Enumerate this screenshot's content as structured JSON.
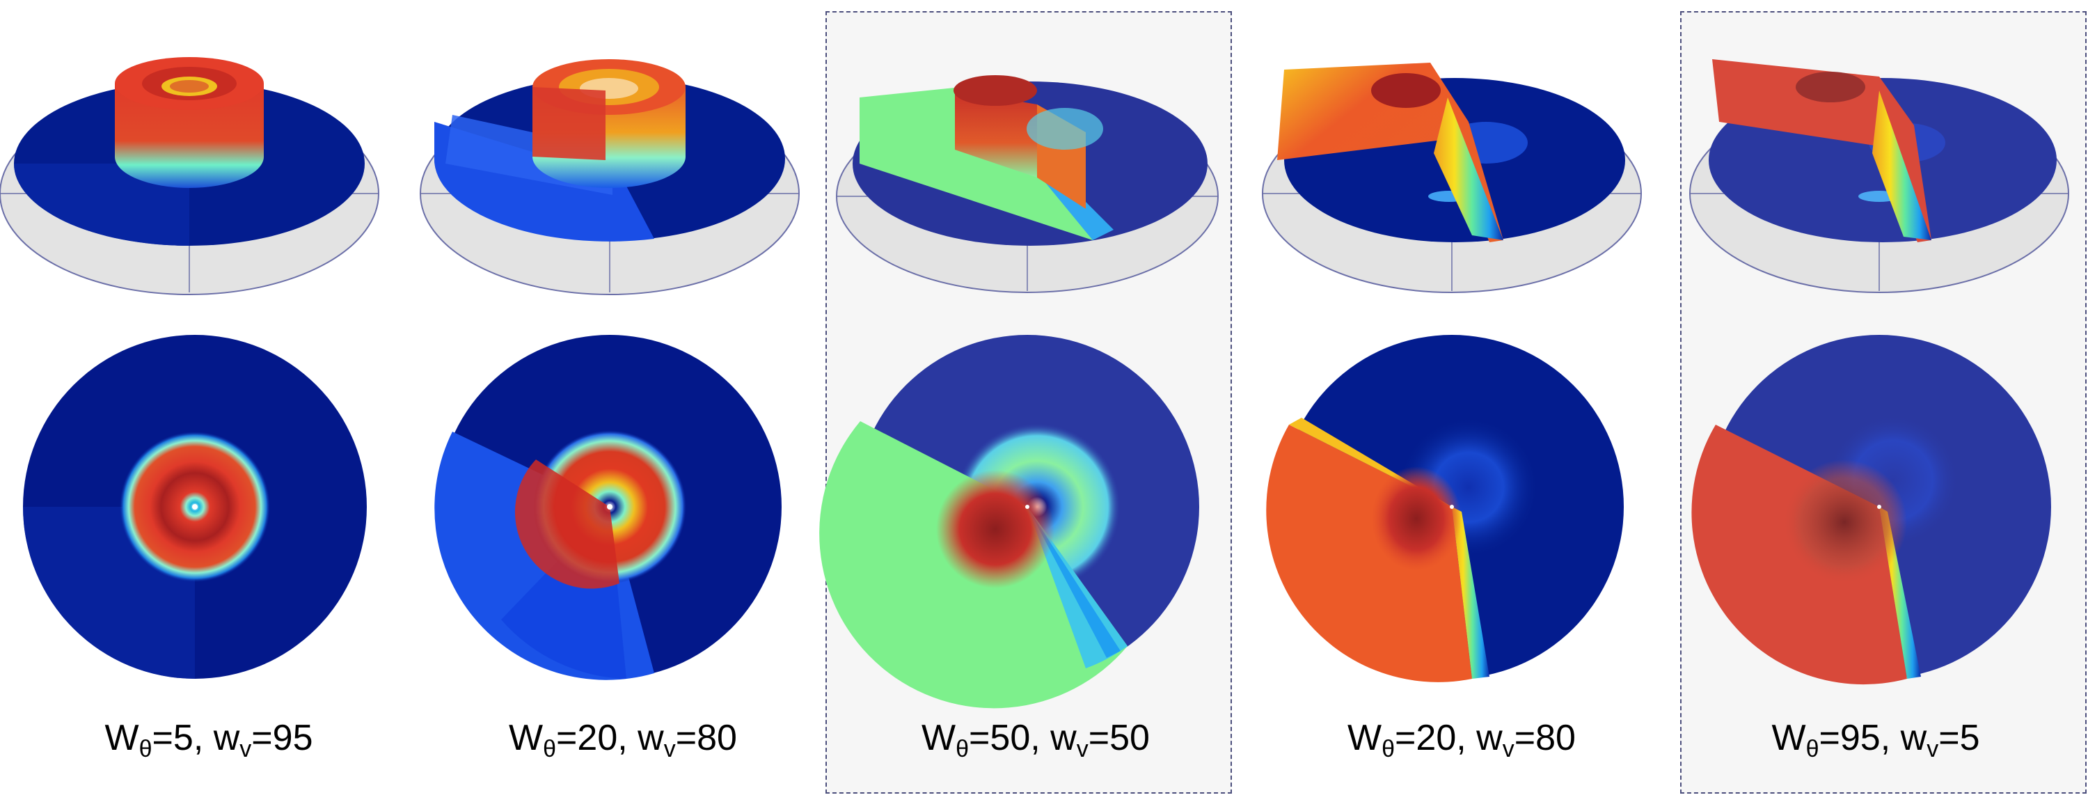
{
  "panels": [
    {
      "w_theta_sym": "W",
      "theta": "θ",
      "w_theta": "5",
      "w_v_sym": "w",
      "v": "v",
      "w_v": "95",
      "highlighted": false
    },
    {
      "w_theta_sym": "W",
      "theta": "θ",
      "w_theta": "20",
      "w_v_sym": "w",
      "v": "v",
      "w_v": "80",
      "highlighted": false
    },
    {
      "w_theta_sym": "W",
      "theta": "θ",
      "w_theta": "50",
      "w_v_sym": "w",
      "v": "v",
      "w_v": "50",
      "highlighted": true
    },
    {
      "w_theta_sym": "W",
      "theta": "θ",
      "w_theta": "20",
      "w_v_sym": "w",
      "v": "v",
      "w_v": "80",
      "highlighted": false
    },
    {
      "w_theta_sym": "W",
      "theta": "θ",
      "w_theta": "95",
      "w_v_sym": "w",
      "v": "v",
      "w_v": "5",
      "highlighted": true
    }
  ],
  "colors": {
    "deep_blue": "#031c8e",
    "mid_blue": "#1f4fe0",
    "green": "#7df08c",
    "orange": "#ec5a28",
    "red": "#d8392b",
    "dark_red": "#8c1e1e",
    "slate_blue": "#28349a",
    "base_gray": "#e3e3e3",
    "axis": "#6b6fa8",
    "highlight_border": "#4b4e7c"
  }
}
